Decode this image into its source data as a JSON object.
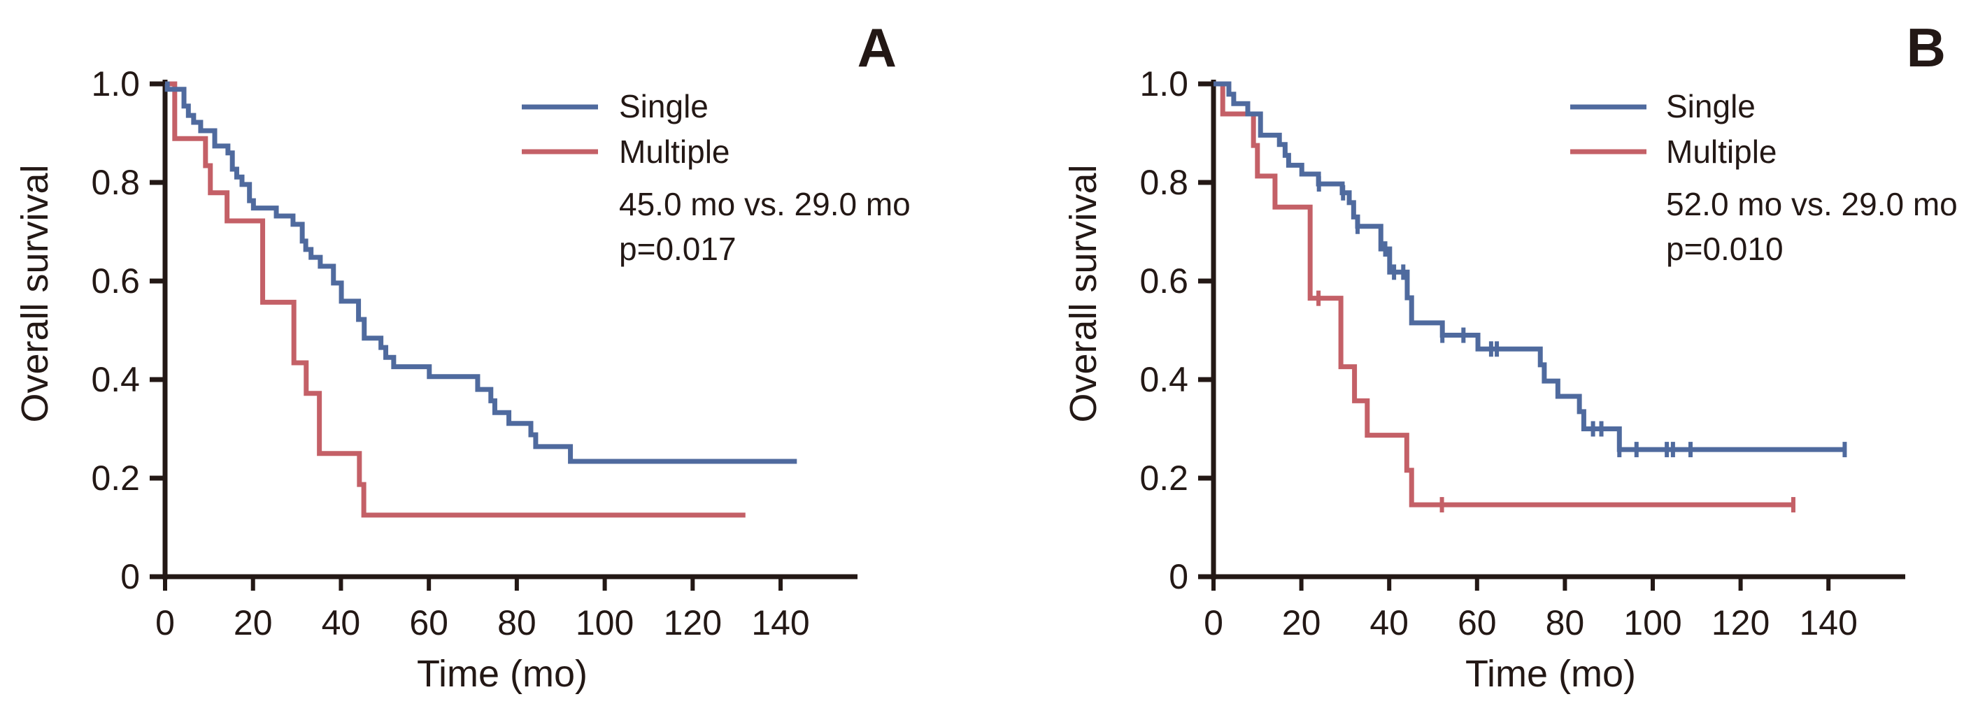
{
  "figure": {
    "colors": {
      "single": "#4f6a9e",
      "multiple": "#c46067",
      "axis": "#231815"
    }
  },
  "chart_data": [
    {
      "type": "line",
      "subtype": "kaplan-meier",
      "panel_label": "A",
      "title": "",
      "xlabel": "Time (mo)",
      "ylabel": "Overall survival",
      "xlim": [
        0,
        155
      ],
      "ylim": [
        0,
        1.0
      ],
      "x_ticks": [
        0,
        20,
        40,
        60,
        80,
        100,
        120,
        140
      ],
      "x_tick_labels": [
        "0",
        "20",
        "40",
        "60",
        "80",
        "100",
        "120",
        "140"
      ],
      "y_ticks": [
        0,
        0.2,
        0.4,
        0.6,
        0.8,
        1.0
      ],
      "y_tick_labels": [
        "0",
        "0.2",
        "0.4",
        "0.6",
        "0.8",
        "1.0"
      ],
      "grid": false,
      "legend_position": "top-right",
      "annotations": [
        "45.0 mo vs. 29.0 mo",
        "p=0.017"
      ],
      "series": [
        {
          "name": "Single",
          "color_key": "single",
          "steps": [
            [
              0,
              1.0
            ],
            [
              0.5,
              0.989
            ],
            [
              4.3,
              0.955
            ],
            [
              5.3,
              0.936
            ],
            [
              6.5,
              0.922
            ],
            [
              8.1,
              0.905
            ],
            [
              11.3,
              0.874
            ],
            [
              14.3,
              0.86
            ],
            [
              15.3,
              0.827
            ],
            [
              16.3,
              0.811
            ],
            [
              17.5,
              0.796
            ],
            [
              19.2,
              0.763
            ],
            [
              20.1,
              0.748
            ],
            [
              25.3,
              0.732
            ],
            [
              29.1,
              0.715
            ],
            [
              31.2,
              0.681
            ],
            [
              32.0,
              0.664
            ],
            [
              33.2,
              0.648
            ],
            [
              35.3,
              0.63
            ],
            [
              38.3,
              0.596
            ],
            [
              40.1,
              0.559
            ],
            [
              44.0,
              0.522
            ],
            [
              45.3,
              0.484
            ],
            [
              49.1,
              0.465
            ],
            [
              50.2,
              0.445
            ],
            [
              52.0,
              0.426
            ],
            [
              60.1,
              0.406
            ],
            [
              71.1,
              0.38
            ],
            [
              74.1,
              0.357
            ],
            [
              75.0,
              0.333
            ],
            [
              78.2,
              0.311
            ],
            [
              83.2,
              0.288
            ],
            [
              84.3,
              0.264
            ],
            [
              92.2,
              0.234
            ]
          ],
          "end_time": 143.7,
          "censored": []
        },
        {
          "name": "Multiple",
          "color_key": "multiple",
          "steps": [
            [
              0,
              1.0
            ],
            [
              2.2,
              0.889
            ],
            [
              9.2,
              0.834
            ],
            [
              10.3,
              0.779
            ],
            [
              14.1,
              0.722
            ],
            [
              22.2,
              0.557
            ],
            [
              29.3,
              0.434
            ],
            [
              32.1,
              0.372
            ],
            [
              35.1,
              0.25
            ],
            [
              44.2,
              0.187
            ],
            [
              45.2,
              0.125
            ]
          ],
          "end_time": 132.0,
          "censored": []
        }
      ]
    },
    {
      "type": "line",
      "subtype": "kaplan-meier",
      "panel_label": "B",
      "title": "",
      "xlabel": "Time (mo)",
      "ylabel": "Overall survival",
      "xlim": [
        0,
        155
      ],
      "ylim": [
        0,
        1.0
      ],
      "x_ticks": [
        0,
        20,
        40,
        60,
        80,
        100,
        120,
        140
      ],
      "x_tick_labels": [
        "0",
        "20",
        "40",
        "60",
        "80",
        "100",
        "120",
        "140"
      ],
      "y_ticks": [
        0,
        0.2,
        0.4,
        0.6,
        0.8,
        1.0
      ],
      "y_tick_labels": [
        "0",
        "0.2",
        "0.4",
        "0.6",
        "0.8",
        "1.0"
      ],
      "grid": false,
      "legend_position": "top-right",
      "annotations": [
        "52.0 mo vs. 29.0 mo",
        "p=0.010"
      ],
      "series": [
        {
          "name": "Single",
          "color_key": "single",
          "steps": [
            [
              0,
              1.0
            ],
            [
              3.5,
              0.979
            ],
            [
              4.6,
              0.96
            ],
            [
              7.8,
              0.939
            ],
            [
              10.7,
              0.896
            ],
            [
              15.0,
              0.877
            ],
            [
              16.3,
              0.855
            ],
            [
              17.1,
              0.835
            ],
            [
              20.1,
              0.817
            ],
            [
              23.9,
              0.797
            ],
            [
              29.3,
              0.779
            ],
            [
              30.9,
              0.759
            ],
            [
              31.9,
              0.73
            ],
            [
              32.8,
              0.711
            ],
            [
              38.1,
              0.665
            ],
            [
              40.1,
              0.618
            ],
            [
              44.1,
              0.566
            ],
            [
              45.1,
              0.515
            ],
            [
              52.1,
              0.49
            ],
            [
              60.2,
              0.462
            ],
            [
              74.4,
              0.43
            ],
            [
              75.3,
              0.397
            ],
            [
              78.4,
              0.366
            ],
            [
              83.3,
              0.335
            ],
            [
              84.3,
              0.3
            ],
            [
              92.4,
              0.258
            ]
          ],
          "end_time": 143.7,
          "censored": [
            24.0,
            29.5,
            32.8,
            39.1,
            41.1,
            43.2,
            52.1,
            56.9,
            63.2,
            64.5,
            86.4,
            88.3,
            92.4,
            96.3,
            103.2,
            104.6,
            108.6,
            143.7
          ]
        },
        {
          "name": "Multiple",
          "color_key": "multiple",
          "steps": [
            [
              0,
              1.0
            ],
            [
              2.1,
              0.939
            ],
            [
              9.1,
              0.875
            ],
            [
              10.0,
              0.813
            ],
            [
              14.0,
              0.75
            ],
            [
              22.0,
              0.565
            ],
            [
              29.0,
              0.426
            ],
            [
              32.1,
              0.357
            ],
            [
              35.0,
              0.287
            ],
            [
              44.0,
              0.216
            ],
            [
              45.1,
              0.146
            ]
          ],
          "end_time": 132.0,
          "censored": [
            23.9,
            52.0,
            132.0
          ]
        }
      ]
    }
  ]
}
